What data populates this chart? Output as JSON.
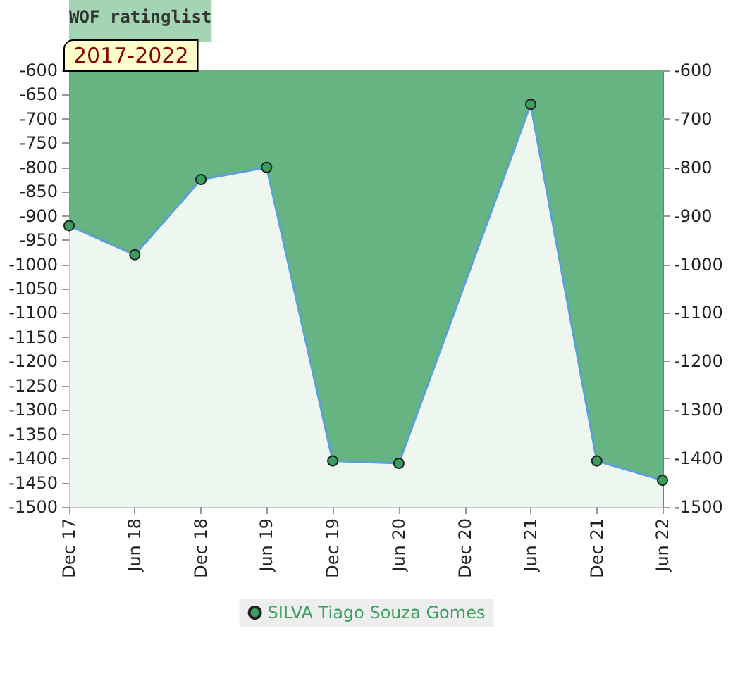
{
  "chart_data": {
    "type": "area",
    "title": "WOF ratinglist",
    "annotations": [
      "2017-2022"
    ],
    "x": [
      "2017-12",
      "2018-06",
      "2018-12",
      "2019-06",
      "2019-12",
      "2020-06",
      "2021-06",
      "2021-12",
      "2022-06"
    ],
    "xlim": [
      "2017-12",
      "2022-06"
    ],
    "xticks": [
      {
        "value": "2017-12",
        "label": "Dec 17"
      },
      {
        "value": "2018-06",
        "label": "Jun 18"
      },
      {
        "value": "2018-12",
        "label": "Dec 18"
      },
      {
        "value": "2019-06",
        "label": "Jun 19"
      },
      {
        "value": "2019-12",
        "label": "Dec 19"
      },
      {
        "value": "2020-06",
        "label": "Jun 20"
      },
      {
        "value": "2020-12",
        "label": "Dec 20"
      },
      {
        "value": "2021-06",
        "label": "Jun 21"
      },
      {
        "value": "2021-12",
        "label": "Dec 21"
      },
      {
        "value": "2022-06",
        "label": "Jun 22"
      }
    ],
    "series": [
      {
        "name": "SILVA Tiago Souza Gomes",
        "color": "#3a9e5f",
        "values": [
          -920,
          -980,
          -825,
          -800,
          -1405,
          -1410,
          -670,
          -1405,
          -1445
        ]
      }
    ],
    "ylim": [
      -1500,
      -600
    ],
    "yticks": [
      -1500,
      -1450,
      -1400,
      -1350,
      -1300,
      -1250,
      -1200,
      -1150,
      -1100,
      -1050,
      -1000,
      -950,
      -900,
      -850,
      -800,
      -750,
      -700,
      -650,
      -600
    ],
    "y2lim": [
      -1500,
      -600
    ],
    "y2ticks": [
      -1500,
      -1400,
      -1300,
      -1200,
      -1100,
      -1000,
      -900,
      -800,
      -700,
      -600
    ],
    "grid": false,
    "legend": "bottom",
    "marker": "circle",
    "line_style": "solid"
  }
}
